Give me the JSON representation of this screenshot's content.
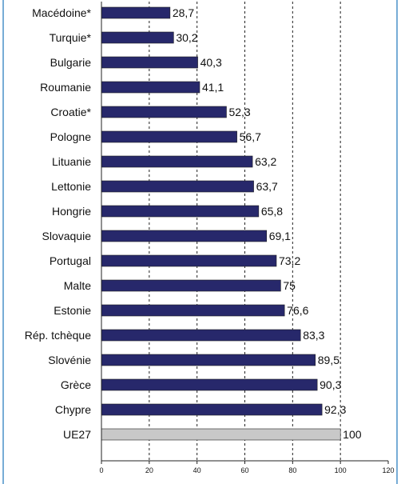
{
  "chart_data": {
    "type": "bar",
    "orientation": "horizontal",
    "categories": [
      "Macédoine*",
      "Turquie*",
      "Bulgarie",
      "Roumanie",
      "Croatie*",
      "Pologne",
      "Lituanie",
      "Lettonie",
      "Hongrie",
      "Slovaquie",
      "Portugal",
      "Malte",
      "Estonie",
      "Rép. tchèque",
      "Slovénie",
      "Grèce",
      "Chypre",
      "UE27"
    ],
    "values": [
      28.7,
      30.2,
      40.3,
      41.1,
      52.3,
      56.7,
      63.2,
      63.7,
      65.8,
      69.1,
      73.2,
      75,
      76.6,
      83.3,
      89.5,
      90.3,
      92.3,
      100
    ],
    "value_labels": [
      "28,7",
      "30,2",
      "40,3",
      "41,1",
      "52,3",
      "56,7",
      "63,2",
      "63,7",
      "65,8",
      "69,1",
      "73,2",
      "75",
      "76,6",
      "83,3",
      "89,5",
      "90,3",
      "92,3",
      "100"
    ],
    "highlight_category": "UE27",
    "xlim": [
      0,
      120
    ],
    "xticks": [
      0,
      20,
      40,
      60,
      80,
      100,
      120
    ],
    "grid": "vertical dashed",
    "title": "",
    "xlabel": "",
    "ylabel": "",
    "colors": {
      "bar": "#27286b",
      "highlight_bar": "#c8c8c8",
      "frame": "#4a90c8"
    }
  }
}
